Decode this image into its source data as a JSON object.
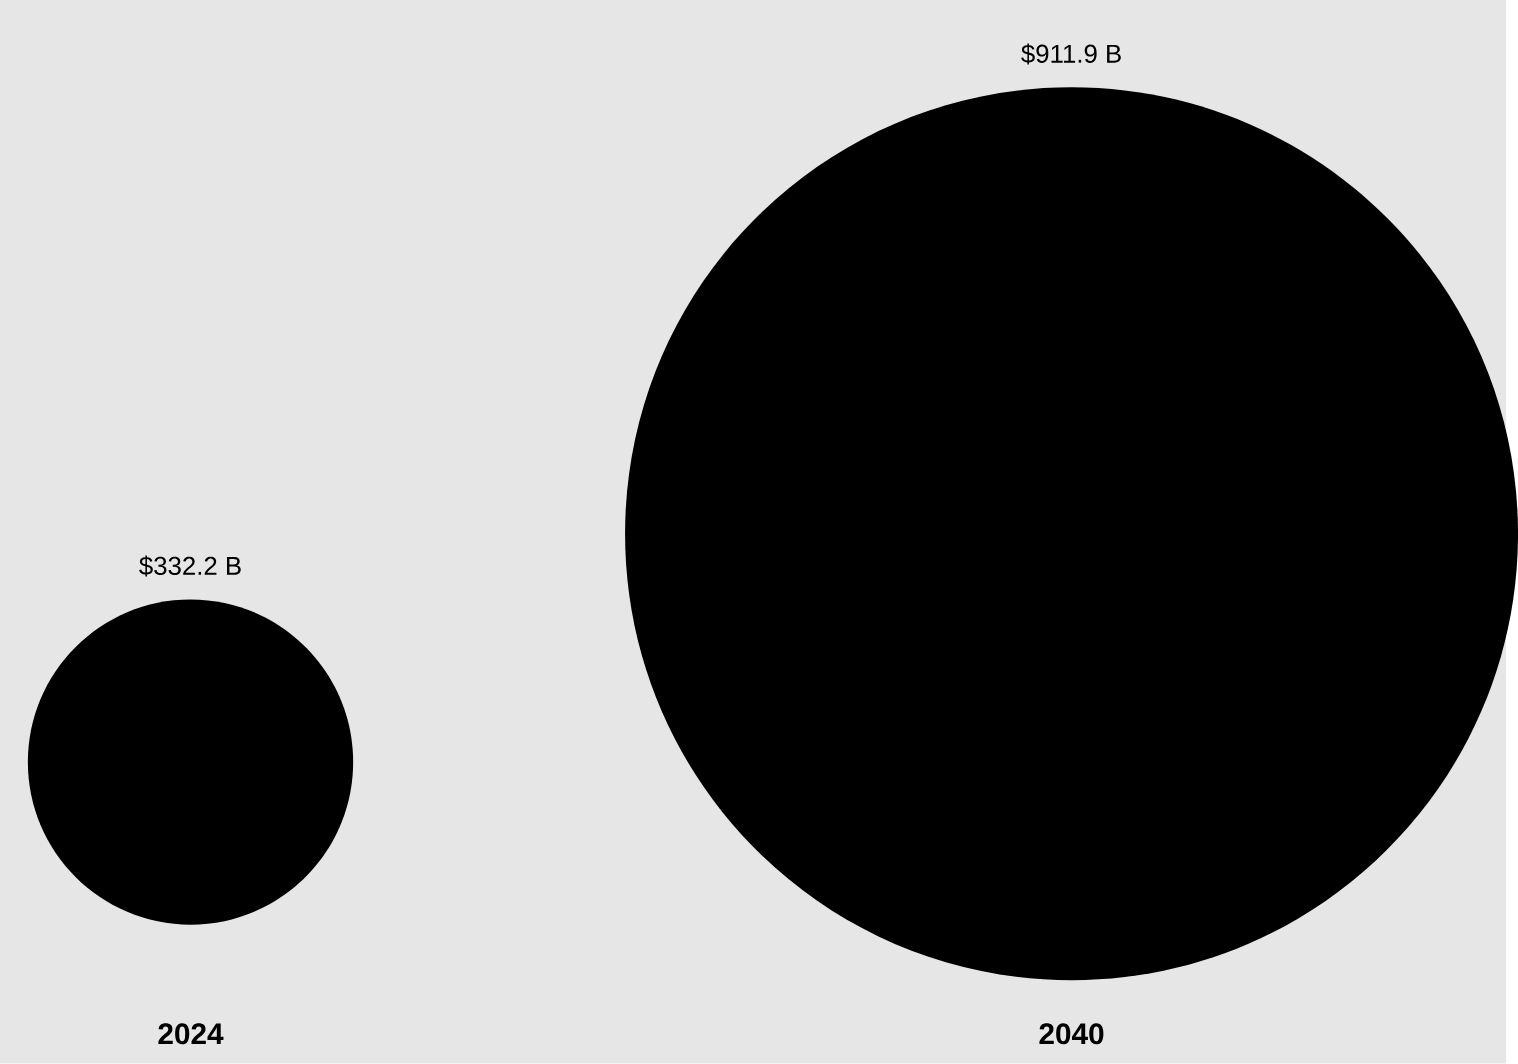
{
  "chart_data": {
    "type": "other",
    "categories": [
      "2024",
      "2040"
    ],
    "values": [
      332.2,
      911.9
    ],
    "value_labels": [
      "$332.2 B",
      "$911.9 B"
    ],
    "colors": [
      "#000000",
      "#000000"
    ]
  }
}
